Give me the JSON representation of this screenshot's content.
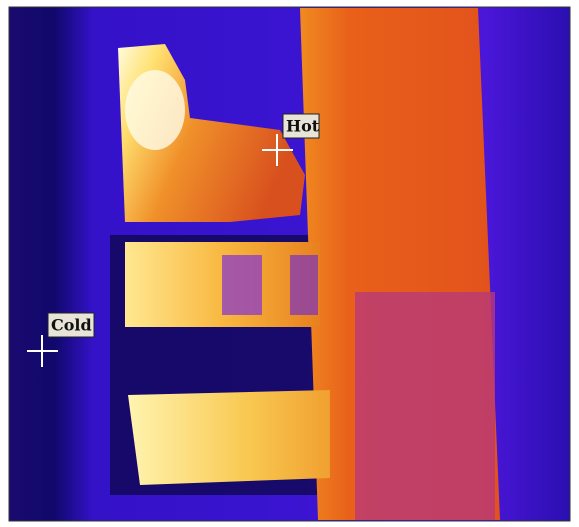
{
  "markers": {
    "hot": {
      "label": "Hot"
    },
    "cold": {
      "label": "Cold"
    }
  }
}
